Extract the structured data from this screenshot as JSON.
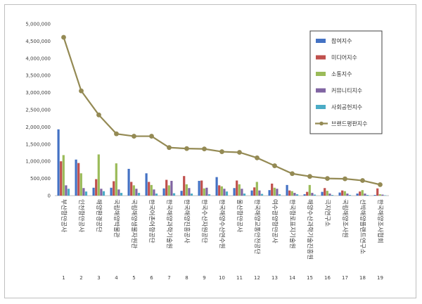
{
  "chart_data": {
    "type": "bar",
    "combo_line_series": "브랜드평판지수",
    "categories": [
      "부산항만공사",
      "인천항만공사",
      "해양환경공단",
      "국립해양박물관",
      "국립해양생물자원관",
      "한국어촌어항공단",
      "한국해양과학기술원",
      "한국해양진흥공사",
      "한국수산자원공단",
      "한국해양수산연수원",
      "울산항만공사",
      "한국해양교통안전공단",
      "여수광양항만공사",
      "한국항로표지기술원",
      "해양수산과학기술진흥원",
      "극지연구소",
      "국립해양조사원",
      "선박해양플랜트연구소",
      "한국해양조사협회"
    ],
    "index_labels": [
      "1",
      "2",
      "3",
      "4",
      "5",
      "6",
      "7",
      "8",
      "9",
      "10",
      "11",
      "12",
      "13",
      "14",
      "15",
      "16",
      "17",
      "18",
      "19"
    ],
    "ylim": [
      0,
      5000000
    ],
    "yticks": [
      "0",
      "500,000",
      "1,000,000",
      "1,500,000",
      "2,000,000",
      "2,500,000",
      "3,000,000",
      "3,500,000",
      "4,000,000",
      "4,500,000",
      "5,000,000"
    ],
    "ytick_values": [
      0,
      500000,
      1000000,
      1500000,
      2000000,
      2500000,
      3000000,
      3500000,
      4000000,
      4500000,
      5000000
    ],
    "legend_position": "right",
    "series": [
      {
        "name": "참여지수",
        "color": "#4472c4",
        "values": [
          1930000,
          1050000,
          230000,
          230000,
          780000,
          650000,
          210000,
          140000,
          430000,
          540000,
          220000,
          150000,
          160000,
          310000,
          40000,
          110000,
          90000,
          60000,
          20000
        ]
      },
      {
        "name": "미디어지수",
        "color": "#c0504d",
        "values": [
          1000000,
          950000,
          480000,
          420000,
          400000,
          400000,
          460000,
          570000,
          440000,
          300000,
          440000,
          240000,
          350000,
          150000,
          110000,
          220000,
          150000,
          120000,
          210000
        ]
      },
      {
        "name": "소통지수",
        "color": "#9bbb59",
        "values": [
          1180000,
          650000,
          1200000,
          940000,
          300000,
          310000,
          300000,
          330000,
          210000,
          270000,
          330000,
          400000,
          230000,
          130000,
          310000,
          140000,
          130000,
          160000,
          40000
        ]
      },
      {
        "name": "커뮤니티지수",
        "color": "#8064a2",
        "values": [
          300000,
          220000,
          200000,
          180000,
          200000,
          180000,
          430000,
          220000,
          230000,
          200000,
          200000,
          150000,
          200000,
          80000,
          80000,
          60000,
          60000,
          60000,
          30000
        ]
      },
      {
        "name": "사회공헌지수",
        "color": "#4bacc6",
        "values": [
          200000,
          120000,
          130000,
          80000,
          80000,
          60000,
          70000,
          60000,
          40000,
          120000,
          60000,
          50000,
          40000,
          40000,
          30000,
          20000,
          20000,
          20000,
          10000
        ]
      }
    ],
    "line": {
      "name": "브랜드평판지수",
      "color": "#948a54",
      "values": [
        4610000,
        3050000,
        2350000,
        1800000,
        1730000,
        1730000,
        1400000,
        1370000,
        1360000,
        1280000,
        1260000,
        1100000,
        870000,
        640000,
        560000,
        500000,
        490000,
        440000,
        320000
      ]
    }
  }
}
